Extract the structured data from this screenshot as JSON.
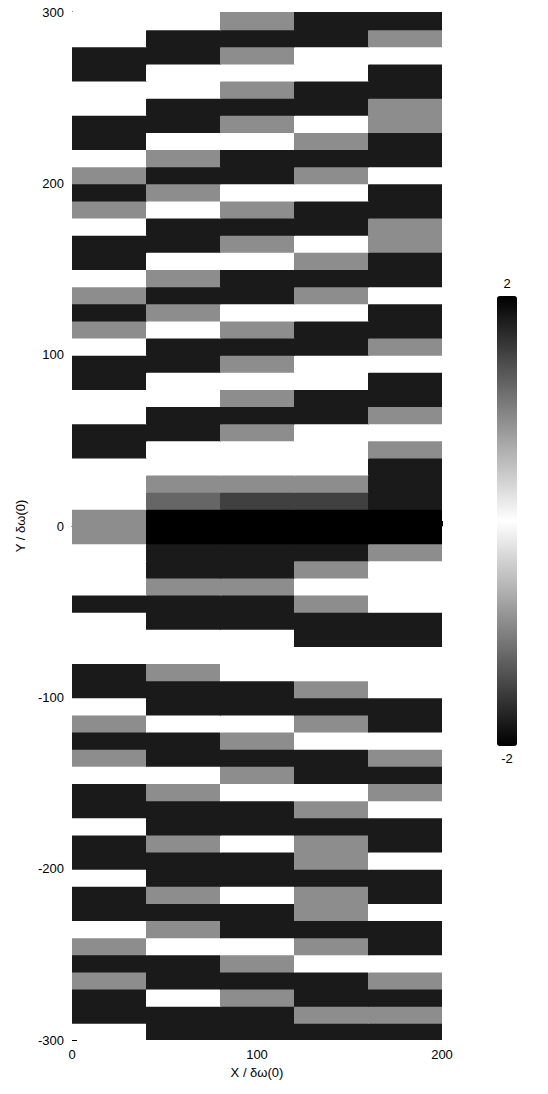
{
  "chart_data": {
    "type": "heatmap",
    "x_label": "X / δω(0)",
    "y_label": "Y / δω(0)",
    "x": [
      20,
      60,
      100,
      140,
      180
    ],
    "y": [
      -295,
      -285,
      -275,
      -265,
      -255,
      -245,
      -235,
      -225,
      -215,
      -205,
      -195,
      -185,
      -175,
      -165,
      -155,
      -145,
      -135,
      -125,
      -115,
      -105,
      -95,
      -85,
      -75,
      -65,
      -55,
      -45,
      -35,
      -25,
      -15,
      -5,
      5,
      15,
      25,
      35,
      45,
      55,
      65,
      75,
      85,
      95,
      105,
      115,
      125,
      135,
      145,
      155,
      165,
      175,
      185,
      195,
      205,
      215,
      225,
      235,
      245,
      255,
      265,
      275,
      285,
      295
    ],
    "values": [
      [
        0,
        1.8,
        1.8,
        1.8,
        1.8
      ],
      [
        1.8,
        1.8,
        1.8,
        0.9,
        -0.9
      ],
      [
        1.8,
        0,
        -0.9,
        -1.8,
        -1.8
      ],
      [
        -0.9,
        -1.8,
        -1.8,
        -1.8,
        -0.9
      ],
      [
        -1.8,
        -1.8,
        -0.9,
        0,
        0
      ],
      [
        -0.9,
        0,
        0,
        0.9,
        1.8
      ],
      [
        0,
        0.9,
        1.8,
        1.8,
        1.8
      ],
      [
        1.8,
        1.8,
        1.8,
        0.9,
        0
      ],
      [
        1.8,
        0.9,
        0,
        -0.9,
        -1.8
      ],
      [
        0,
        -1.8,
        -1.8,
        -1.8,
        -1.8
      ],
      [
        -1.8,
        -1.8,
        -1.8,
        -0.9,
        0
      ],
      [
        -1.8,
        -0.9,
        0,
        0.9,
        1.8
      ],
      [
        0,
        1.8,
        1.8,
        1.8,
        1.8
      ],
      [
        1.8,
        1.8,
        1.8,
        0.9,
        0
      ],
      [
        1.8,
        0.9,
        0,
        0,
        -0.9
      ],
      [
        0,
        0,
        -0.9,
        -1.8,
        -1.8
      ],
      [
        -0.9,
        -1.8,
        -1.8,
        -1.8,
        -0.9
      ],
      [
        -1.8,
        -1.8,
        -0.9,
        0,
        0
      ],
      [
        -0.9,
        0,
        0,
        0.9,
        1.8
      ],
      [
        0,
        1.8,
        1.8,
        1.8,
        1.8
      ],
      [
        1.8,
        1.8,
        1.8,
        0.9,
        0
      ],
      [
        1.8,
        0.9,
        0,
        0,
        0
      ],
      [
        0,
        0,
        0,
        0,
        0
      ],
      [
        0,
        0,
        0,
        -1.8,
        -1.8
      ],
      [
        0,
        -1.8,
        -1.8,
        -1.8,
        -1.8
      ],
      [
        -1.8,
        -1.8,
        -1.8,
        -0.9,
        0
      ],
      [
        0,
        0.9,
        0.9,
        0,
        0
      ],
      [
        0,
        1.8,
        1.8,
        0.9,
        0
      ],
      [
        0,
        1.8,
        1.8,
        1.8,
        0.9
      ],
      [
        -0.9,
        2,
        -2,
        2,
        -2
      ],
      [
        0.9,
        -2,
        2,
        -2,
        2
      ],
      [
        0,
        1.2,
        -1.5,
        1.5,
        -1.8
      ],
      [
        0,
        0.9,
        0.9,
        0.9,
        -1.8
      ],
      [
        0,
        0,
        0,
        0,
        -1.8
      ],
      [
        1.8,
        0,
        0,
        0,
        -0.9
      ],
      [
        1.8,
        1.8,
        0.9,
        0,
        0
      ],
      [
        0,
        1.8,
        1.8,
        1.8,
        0.9
      ],
      [
        0,
        0,
        0.9,
        1.8,
        1.8
      ],
      [
        -1.8,
        0,
        0,
        0,
        1.8
      ],
      [
        -1.8,
        -1.8,
        -0.9,
        0,
        0
      ],
      [
        0,
        -1.8,
        -1.8,
        -1.8,
        -0.9
      ],
      [
        0.9,
        0,
        -0.9,
        -1.8,
        -1.8
      ],
      [
        1.8,
        0.9,
        0,
        0,
        -1.8
      ],
      [
        0.9,
        1.8,
        1.8,
        0.9,
        0
      ],
      [
        0,
        0.9,
        1.8,
        1.8,
        1.8
      ],
      [
        -1.8,
        0,
        0,
        0.9,
        1.8
      ],
      [
        -1.8,
        -1.8,
        -0.9,
        0,
        0.9
      ],
      [
        0,
        -1.8,
        -1.8,
        -1.8,
        -0.9
      ],
      [
        0.9,
        0,
        -0.9,
        -1.8,
        -1.8
      ],
      [
        1.8,
        0.9,
        0,
        0,
        -1.8
      ],
      [
        0.9,
        1.8,
        1.8,
        0.9,
        0
      ],
      [
        0,
        0.9,
        1.8,
        1.8,
        1.8
      ],
      [
        -1.8,
        0,
        0,
        0.9,
        1.8
      ],
      [
        -1.8,
        -1.8,
        -0.9,
        0,
        0.9
      ],
      [
        0,
        -1.8,
        -1.8,
        -1.8,
        -0.9
      ],
      [
        0,
        0,
        -0.9,
        -1.8,
        -1.8
      ],
      [
        1.8,
        0,
        0,
        0,
        -1.8
      ],
      [
        1.8,
        1.8,
        0.9,
        0,
        0
      ],
      [
        0,
        1.8,
        1.8,
        1.8,
        0.9
      ],
      [
        0,
        0,
        0.9,
        1.8,
        1.8
      ]
    ],
    "xlim": [
      0,
      200
    ],
    "xticks": [
      0,
      100,
      200
    ],
    "ylim": [
      -300,
      300
    ],
    "yticks": [
      -300,
      -200,
      -100,
      0,
      100,
      200,
      300
    ],
    "colorbar": {
      "range": [
        -2,
        2
      ],
      "ticks": [
        -2,
        2
      ]
    }
  }
}
